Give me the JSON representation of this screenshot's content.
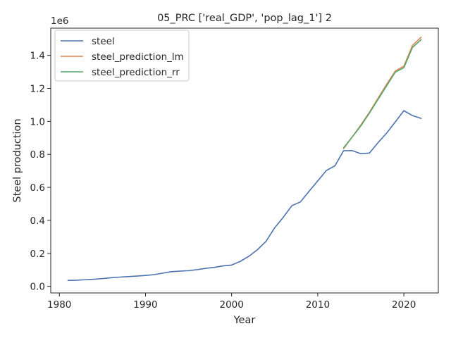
{
  "chart_data": {
    "type": "line",
    "title": "05_PRC ['real_GDP', 'pop_lag_1'] 2",
    "xlabel": "Year",
    "ylabel": "Steel production",
    "y_offset_label": "1e6",
    "xlim": [
      1979,
      2024
    ],
    "ylim": [
      -0.04,
      1.565
    ],
    "x_ticks": [
      1980,
      1990,
      2000,
      2010,
      2020
    ],
    "x_tick_labels": [
      "1980",
      "1990",
      "2000",
      "2010",
      "2020"
    ],
    "y_ticks": [
      0.0,
      0.2,
      0.4,
      0.6,
      0.8,
      1.0,
      1.2,
      1.4
    ],
    "y_tick_labels": [
      "0.0",
      "0.2",
      "0.4",
      "0.6",
      "0.8",
      "1.0",
      "1.2",
      "1.4"
    ],
    "grid": false,
    "legend_position": "top-left",
    "series": [
      {
        "name": "steel",
        "color": "#4c72b0",
        "x": [
          1981,
          1982,
          1983,
          1984,
          1985,
          1986,
          1987,
          1988,
          1989,
          1990,
          1991,
          1992,
          1993,
          1994,
          1995,
          1996,
          1997,
          1998,
          1999,
          2000,
          2001,
          2002,
          2003,
          2004,
          2005,
          2006,
          2007,
          2008,
          2009,
          2010,
          2011,
          2012,
          2013,
          2014,
          2015,
          2016,
          2017,
          2018,
          2019,
          2020,
          2021,
          2022
        ],
        "values": [
          0.036,
          0.037,
          0.04,
          0.043,
          0.047,
          0.052,
          0.056,
          0.059,
          0.062,
          0.066,
          0.071,
          0.08,
          0.089,
          0.092,
          0.095,
          0.101,
          0.109,
          0.115,
          0.124,
          0.129,
          0.151,
          0.182,
          0.222,
          0.273,
          0.355,
          0.419,
          0.489,
          0.512,
          0.577,
          0.639,
          0.702,
          0.731,
          0.822,
          0.823,
          0.804,
          0.808,
          0.871,
          0.929,
          0.996,
          1.065,
          1.035,
          1.018
        ]
      },
      {
        "name": "steel_prediction_lm",
        "color": "#dd8452",
        "x": [
          2013,
          2014,
          2015,
          2016,
          2017,
          2018,
          2019,
          2020,
          2021,
          2022
        ],
        "values": [
          0.835,
          0.905,
          0.978,
          1.055,
          1.14,
          1.225,
          1.305,
          1.335,
          1.46,
          1.51
        ]
      },
      {
        "name": "steel_prediction_rr",
        "color": "#55a868",
        "x": [
          2013,
          2014,
          2015,
          2016,
          2017,
          2018,
          2019,
          2020,
          2021,
          2022
        ],
        "values": [
          0.84,
          0.905,
          0.972,
          1.05,
          1.133,
          1.215,
          1.298,
          1.325,
          1.448,
          1.495
        ]
      }
    ]
  }
}
